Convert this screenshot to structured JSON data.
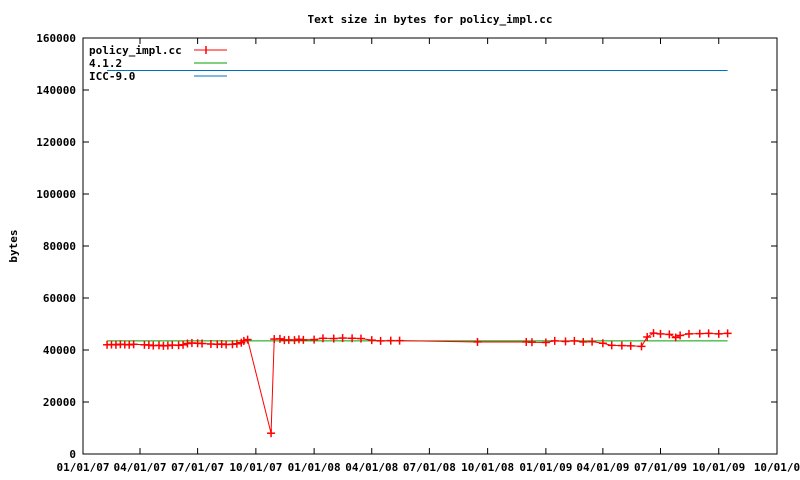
{
  "chart_data": {
    "type": "line",
    "title": "Text size in bytes for policy_impl.cc",
    "xlabel": "",
    "ylabel": "bytes",
    "ylim": [
      0,
      160000
    ],
    "yticks": [
      "0",
      "20000",
      "40000",
      "60000",
      "80000",
      "100000",
      "120000",
      "140000",
      "160000"
    ],
    "xlim": [
      "2007-01-01",
      "2010-01-01"
    ],
    "xticks": [
      "01/01/07",
      "04/01/07",
      "07/01/07",
      "10/01/07",
      "01/01/08",
      "04/01/08",
      "07/01/08",
      "10/01/08",
      "01/01/09",
      "04/01/09",
      "07/01/09",
      "10/01/09",
      "10/01/0"
    ],
    "legend_position": "top-left",
    "series": [
      {
        "name": "policy_impl.cc",
        "color": "#ff0000",
        "marker": "plus",
        "points": [
          [
            "2007-02-08",
            42000
          ],
          [
            "2007-02-15",
            42100
          ],
          [
            "2007-02-22",
            42000
          ],
          [
            "2007-03-01",
            42200
          ],
          [
            "2007-03-08",
            42100
          ],
          [
            "2007-03-15",
            42000
          ],
          [
            "2007-03-22",
            42200
          ],
          [
            "2007-04-08",
            42000
          ],
          [
            "2007-04-15",
            41900
          ],
          [
            "2007-04-22",
            41700
          ],
          [
            "2007-05-01",
            41800
          ],
          [
            "2007-05-08",
            41600
          ],
          [
            "2007-05-15",
            41700
          ],
          [
            "2007-05-22",
            41900
          ],
          [
            "2007-06-01",
            41800
          ],
          [
            "2007-06-08",
            42000
          ],
          [
            "2007-06-15",
            42500
          ],
          [
            "2007-06-22",
            42700
          ],
          [
            "2007-07-01",
            42600
          ],
          [
            "2007-07-08",
            42500
          ],
          [
            "2007-07-22",
            42300
          ],
          [
            "2007-08-01",
            42200
          ],
          [
            "2007-08-08",
            42300
          ],
          [
            "2007-08-15",
            42100
          ],
          [
            "2007-08-25",
            42200
          ],
          [
            "2007-09-01",
            42400
          ],
          [
            "2007-09-08",
            42800
          ],
          [
            "2007-09-12",
            43500
          ],
          [
            "2007-09-18",
            44000
          ],
          [
            "2007-10-25",
            8000
          ],
          [
            "2007-10-30",
            44200
          ],
          [
            "2007-11-08",
            44300
          ],
          [
            "2007-11-15",
            43800
          ],
          [
            "2007-11-22",
            43900
          ],
          [
            "2007-12-01",
            43800
          ],
          [
            "2007-12-08",
            44100
          ],
          [
            "2007-12-15",
            43900
          ],
          [
            "2008-01-01",
            44000
          ],
          [
            "2008-01-15",
            44500
          ],
          [
            "2008-02-01",
            44400
          ],
          [
            "2008-02-15",
            44600
          ],
          [
            "2008-03-01",
            44500
          ],
          [
            "2008-03-15",
            44400
          ],
          [
            "2008-04-01",
            43800
          ],
          [
            "2008-04-15",
            43500
          ],
          [
            "2008-05-01",
            43600
          ],
          [
            "2008-05-15",
            43600
          ],
          [
            "2008-09-15",
            43100
          ],
          [
            "2008-12-01",
            43100
          ],
          [
            "2008-12-10",
            43000
          ],
          [
            "2009-01-01",
            42900
          ],
          [
            "2009-01-15",
            43500
          ],
          [
            "2009-02-01",
            43300
          ],
          [
            "2009-02-15",
            43500
          ],
          [
            "2009-03-01",
            43100
          ],
          [
            "2009-03-15",
            43200
          ],
          [
            "2009-04-01",
            42600
          ],
          [
            "2009-04-15",
            41800
          ],
          [
            "2009-05-01",
            41700
          ],
          [
            "2009-05-15",
            41600
          ],
          [
            "2009-06-01",
            41400
          ],
          [
            "2009-06-10",
            45000
          ],
          [
            "2009-06-20",
            46500
          ],
          [
            "2009-07-01",
            46200
          ],
          [
            "2009-07-15",
            46000
          ],
          [
            "2009-07-25",
            44800
          ],
          [
            "2009-08-01",
            45600
          ],
          [
            "2009-08-15",
            46200
          ],
          [
            "2009-09-01",
            46300
          ],
          [
            "2009-09-15",
            46400
          ],
          [
            "2009-10-01",
            46200
          ],
          [
            "2009-10-15",
            46400
          ]
        ]
      },
      {
        "name": "4.1.2",
        "color": "#00a000",
        "marker": "none",
        "points": [
          [
            "2007-02-08",
            43500
          ],
          [
            "2009-10-15",
            43500
          ]
        ]
      },
      {
        "name": "ICC-9.0",
        "color": "#0070c0",
        "marker": "none",
        "points": [
          [
            "2007-02-08",
            147500
          ],
          [
            "2009-10-15",
            147500
          ]
        ]
      }
    ]
  }
}
